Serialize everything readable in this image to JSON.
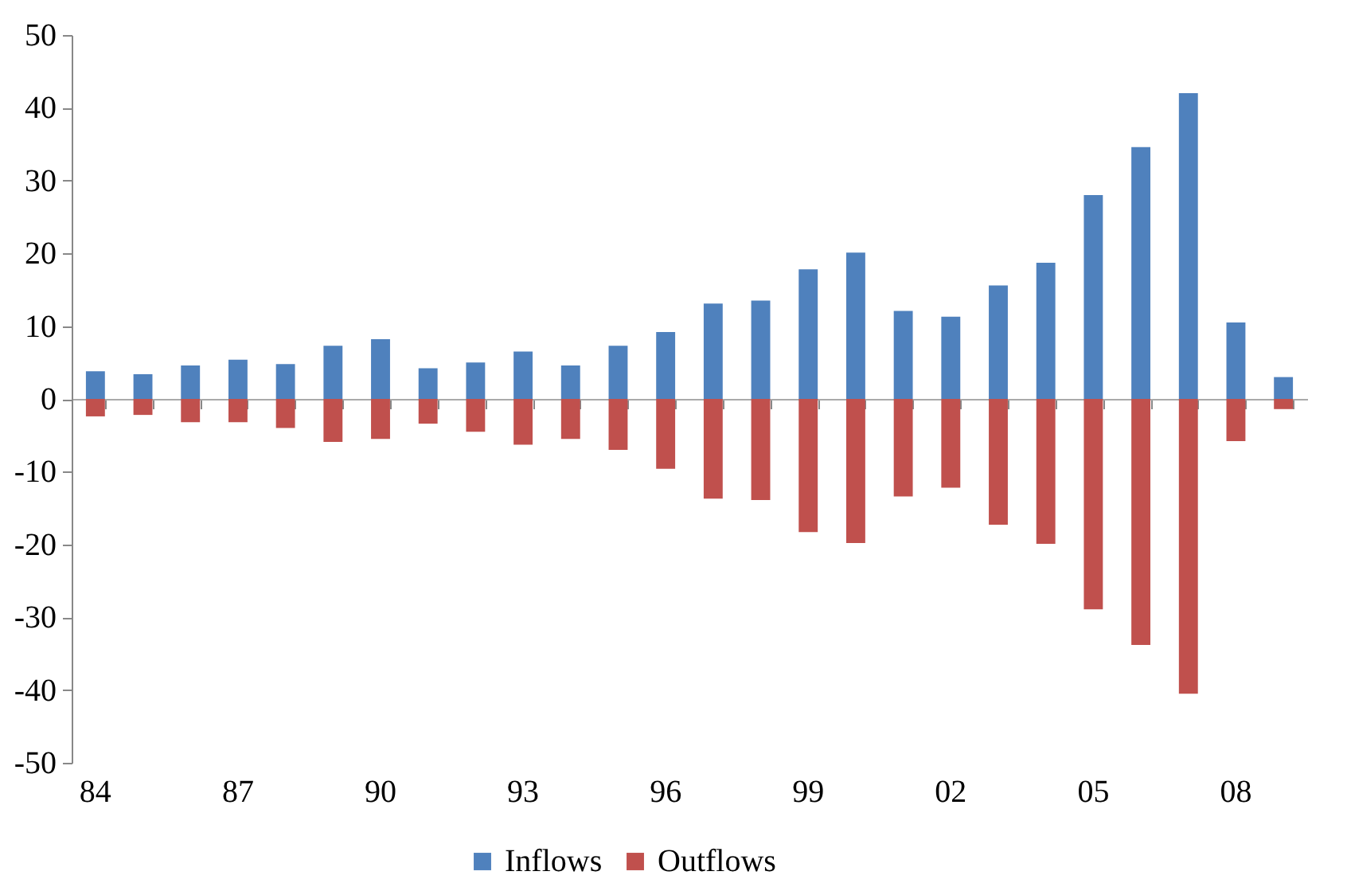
{
  "chart_data": {
    "type": "bar",
    "stacked": true,
    "legend": "bottom",
    "categories": [
      "84",
      null,
      null,
      "87",
      null,
      null,
      "90",
      null,
      null,
      "93",
      null,
      null,
      "96",
      null,
      null,
      "99",
      null,
      null,
      "02",
      null,
      null,
      "05",
      null,
      null,
      "08",
      null
    ],
    "series": [
      {
        "name": "Inflows",
        "color": "#4f81bd",
        "values": [
          3.8,
          3.4,
          4.6,
          5.4,
          4.8,
          7.3,
          8.2,
          4.2,
          5.0,
          6.5,
          4.6,
          7.3,
          9.2,
          13.1,
          13.5,
          17.8,
          20.1,
          12.1,
          11.3,
          15.6,
          18.7,
          28.0,
          34.6,
          42.0,
          10.5,
          3.0
        ]
      },
      {
        "name": "Outflows",
        "color": "#c0504d",
        "values": [
          -2.4,
          -2.2,
          -3.2,
          -3.2,
          -4.0,
          -5.9,
          -5.5,
          -3.4,
          -4.5,
          -6.3,
          -5.5,
          -7.0,
          -9.6,
          -13.7,
          -13.9,
          -18.3,
          -19.8,
          -13.4,
          -12.2,
          -17.3,
          -19.9,
          -28.9,
          -33.8,
          -40.5,
          -5.8,
          -1.4
        ]
      }
    ],
    "ylim": [
      -50,
      50
    ],
    "yticks": [
      -50,
      -40,
      -30,
      -20,
      -10,
      0,
      10,
      20,
      30,
      40,
      50
    ]
  }
}
